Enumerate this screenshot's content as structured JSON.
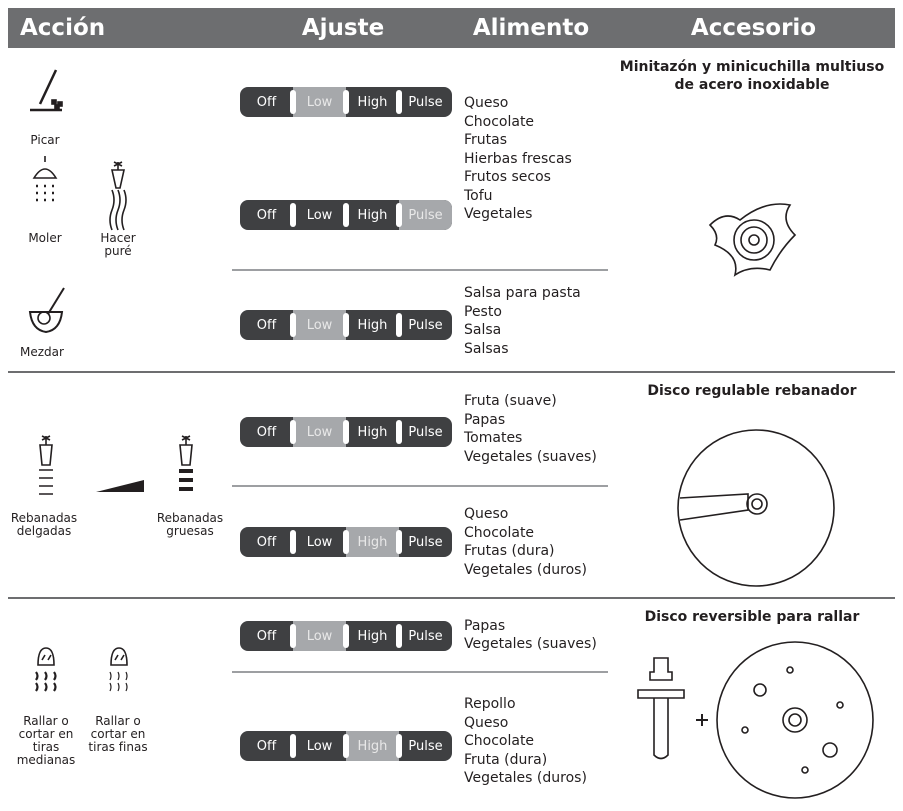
{
  "header": {
    "columns": [
      "Acción",
      "Ajuste",
      "Alimento",
      "Accesorio"
    ]
  },
  "switch_labels": [
    "Off",
    "Low",
    "High",
    "Pulse"
  ],
  "sections": [
    {
      "actions": [
        "Picar",
        "Moler",
        "Hacer puré",
        "Mezdar"
      ],
      "groups": [
        {
          "settings": [
            "Low",
            "Pulse"
          ],
          "foods": [
            "Queso",
            "Chocolate",
            "Frutas",
            "Hierbas frescas",
            "Frutos secos",
            "Tofu",
            "Vegetales"
          ]
        },
        {
          "settings": [
            "Low"
          ],
          "foods": [
            "Salsa para pasta",
            "Pesto",
            "Salsa",
            "Salsas"
          ]
        }
      ],
      "accessory": "Minitazón y minicuchilla multiuso de acero inoxidable"
    },
    {
      "actions": [
        "Rebanadas delgadas",
        "Rebanadas gruesas"
      ],
      "groups": [
        {
          "settings": [
            "Low"
          ],
          "foods": [
            "Fruta (suave)",
            "Papas",
            "Tomates",
            "Vegetales (suaves)"
          ]
        },
        {
          "settings": [
            "High"
          ],
          "foods": [
            "Queso",
            "Chocolate",
            "Frutas (dura)",
            "Vegetales (duros)"
          ]
        }
      ],
      "accessory": "Disco regulable rebanador"
    },
    {
      "actions": [
        "Rallar o cortar en tiras medianas",
        "Rallar o cortar en tiras finas"
      ],
      "groups": [
        {
          "settings": [
            "Low"
          ],
          "foods": [
            "Papas",
            "Vegetales (suaves)"
          ]
        },
        {
          "settings": [
            "High"
          ],
          "foods": [
            "Repollo",
            "Queso",
            "Chocolate",
            "Fruta (dura)",
            "Vegetales (duros)"
          ]
        }
      ],
      "accessory": "Disco reversible para rallar"
    }
  ]
}
